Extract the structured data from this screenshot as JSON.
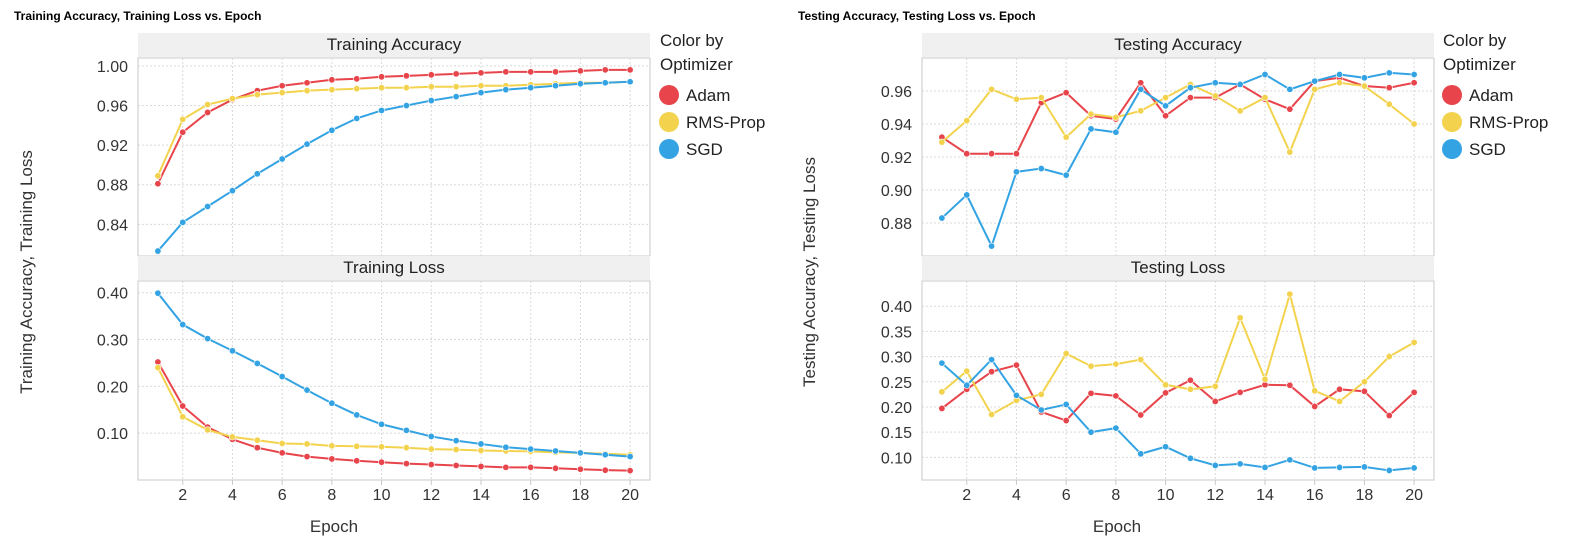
{
  "colors": {
    "Adam": "#e8444b",
    "RMS-Prop": "#f3d34e",
    "SGD": "#33a3e3",
    "grid": "#d9d9d9",
    "strip": "#f0f0f0",
    "frame": "#c9c9c9"
  },
  "legend": {
    "title_line1": "Color by",
    "title_line2": "Optimizer",
    "items": [
      "Adam",
      "RMS-Prop",
      "SGD"
    ]
  },
  "chart_data": [
    {
      "type": "line",
      "title": "Training Accuracy, Training Loss vs. Epoch",
      "xlabel": "Epoch",
      "ylabel": "Training Accuracy, Training Loss",
      "x": [
        1,
        2,
        3,
        4,
        5,
        6,
        7,
        8,
        9,
        10,
        11,
        12,
        13,
        14,
        15,
        16,
        17,
        18,
        19,
        20
      ],
      "x_ticks": [
        2,
        4,
        6,
        8,
        10,
        12,
        14,
        16,
        18,
        20
      ],
      "xlim": [
        0.2,
        20.8
      ],
      "panels": [
        {
          "title": "Training Accuracy",
          "ylim": [
            0.808,
            1.008
          ],
          "y_ticks": [
            "0.84",
            "0.88",
            "0.92",
            "0.96",
            "1.00"
          ],
          "series": [
            {
              "name": "Adam",
              "values": [
                0.881,
                0.933,
                0.953,
                0.966,
                0.975,
                0.98,
                0.983,
                0.986,
                0.987,
                0.989,
                0.99,
                0.991,
                0.992,
                0.993,
                0.994,
                0.994,
                0.994,
                0.995,
                0.996,
                0.996
              ]
            },
            {
              "name": "RMS-Prop",
              "values": [
                0.889,
                0.946,
                0.961,
                0.967,
                0.971,
                0.973,
                0.975,
                0.976,
                0.977,
                0.978,
                0.978,
                0.979,
                0.979,
                0.98,
                0.98,
                0.981,
                0.982,
                0.983,
                0.983,
                0.984
              ]
            },
            {
              "name": "SGD",
              "values": [
                0.813,
                0.842,
                0.858,
                0.874,
                0.891,
                0.906,
                0.921,
                0.935,
                0.947,
                0.955,
                0.96,
                0.965,
                0.969,
                0.973,
                0.976,
                0.978,
                0.98,
                0.982,
                0.983,
                0.984
              ]
            }
          ]
        },
        {
          "title": "Training Loss",
          "ylim": [
            0.0,
            0.425
          ],
          "y_ticks": [
            "0.10",
            "0.20",
            "0.30",
            "0.40"
          ],
          "series": [
            {
              "name": "Adam",
              "values": [
                0.252,
                0.158,
                0.113,
                0.087,
                0.069,
                0.058,
                0.05,
                0.045,
                0.041,
                0.038,
                0.035,
                0.033,
                0.031,
                0.029,
                0.027,
                0.027,
                0.025,
                0.023,
                0.021,
                0.02
              ]
            },
            {
              "name": "RMS-Prop",
              "values": [
                0.24,
                0.135,
                0.107,
                0.092,
                0.085,
                0.078,
                0.077,
                0.073,
                0.072,
                0.071,
                0.069,
                0.066,
                0.065,
                0.063,
                0.062,
                0.061,
                0.059,
                0.058,
                0.056,
                0.054
              ]
            },
            {
              "name": "SGD",
              "values": [
                0.399,
                0.332,
                0.302,
                0.276,
                0.249,
                0.221,
                0.192,
                0.164,
                0.139,
                0.119,
                0.106,
                0.093,
                0.084,
                0.077,
                0.07,
                0.066,
                0.062,
                0.058,
                0.054,
                0.05
              ]
            }
          ]
        }
      ]
    },
    {
      "type": "line",
      "title": "Testing Accuracy, Testing Loss vs. Epoch",
      "xlabel": "Epoch",
      "ylabel": "Testing Accuracy, Testing Loss",
      "x": [
        1,
        2,
        3,
        4,
        5,
        6,
        7,
        8,
        9,
        10,
        11,
        12,
        13,
        14,
        15,
        16,
        17,
        18,
        19,
        20
      ],
      "x_ticks": [
        2,
        4,
        6,
        8,
        10,
        12,
        14,
        16,
        18,
        20
      ],
      "xlim": [
        0.2,
        20.8
      ],
      "panels": [
        {
          "title": "Testing Accuracy",
          "ylim": [
            0.86,
            0.98
          ],
          "y_ticks": [
            "0.88",
            "0.90",
            "0.92",
            "0.94",
            "0.96"
          ],
          "series": [
            {
              "name": "Adam",
              "values": [
                0.932,
                0.922,
                0.922,
                0.922,
                0.953,
                0.959,
                0.945,
                0.943,
                0.965,
                0.945,
                0.956,
                0.956,
                0.964,
                0.955,
                0.949,
                0.966,
                0.968,
                0.963,
                0.962,
                0.965
              ]
            },
            {
              "name": "RMS-Prop",
              "values": [
                0.929,
                0.942,
                0.961,
                0.955,
                0.956,
                0.932,
                0.946,
                0.944,
                0.948,
                0.956,
                0.964,
                0.957,
                0.948,
                0.956,
                0.923,
                0.961,
                0.965,
                0.963,
                0.952,
                0.94
              ]
            },
            {
              "name": "SGD",
              "values": [
                0.883,
                0.897,
                0.866,
                0.911,
                0.913,
                0.909,
                0.937,
                0.935,
                0.961,
                0.951,
                0.962,
                0.965,
                0.964,
                0.97,
                0.961,
                0.966,
                0.97,
                0.968,
                0.971,
                0.97
              ]
            }
          ]
        },
        {
          "title": "Testing Loss",
          "ylim": [
            0.055,
            0.45
          ],
          "y_ticks": [
            "0.10",
            "0.15",
            "0.20",
            "0.25",
            "0.30",
            "0.35",
            "0.40"
          ],
          "series": [
            {
              "name": "Adam",
              "values": [
                0.197,
                0.235,
                0.27,
                0.283,
                0.19,
                0.173,
                0.227,
                0.222,
                0.184,
                0.228,
                0.253,
                0.211,
                0.229,
                0.244,
                0.243,
                0.201,
                0.235,
                0.231,
                0.183,
                0.229
              ]
            },
            {
              "name": "RMS-Prop",
              "values": [
                0.23,
                0.271,
                0.185,
                0.213,
                0.225,
                0.306,
                0.281,
                0.285,
                0.294,
                0.244,
                0.235,
                0.241,
                0.377,
                0.255,
                0.424,
                0.232,
                0.211,
                0.25,
                0.3,
                0.328
              ]
            },
            {
              "name": "SGD",
              "values": [
                0.287,
                0.243,
                0.294,
                0.223,
                0.194,
                0.205,
                0.15,
                0.158,
                0.107,
                0.121,
                0.098,
                0.084,
                0.087,
                0.08,
                0.095,
                0.079,
                0.08,
                0.081,
                0.074,
                0.079
              ]
            }
          ]
        }
      ]
    }
  ]
}
